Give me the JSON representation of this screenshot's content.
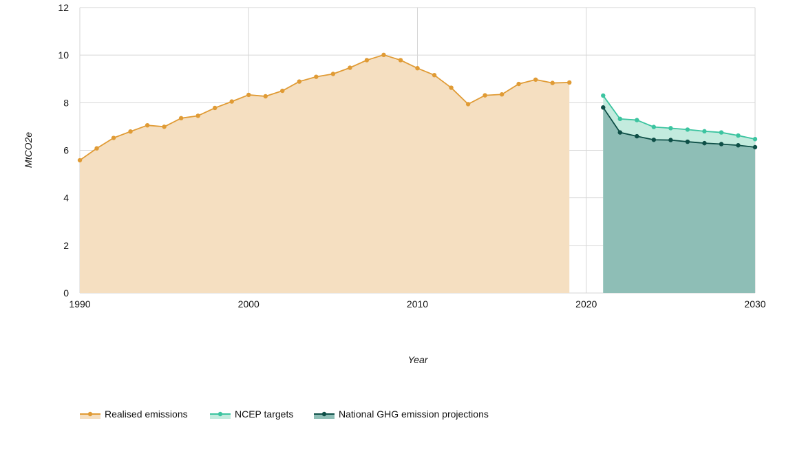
{
  "chart_data": {
    "type": "area",
    "xlabel": "Year",
    "ylabel": "MtCO2e",
    "xlim": [
      1990,
      2030
    ],
    "ylim": [
      0,
      12
    ],
    "x_ticks": [
      1990,
      2000,
      2010,
      2020,
      2030
    ],
    "y_ticks": [
      0,
      2,
      4,
      6,
      8,
      10,
      12
    ],
    "grid": true,
    "legend_position": "bottom-left",
    "series": [
      {
        "name": "Realised emissions",
        "line_color": "#E09B35",
        "fill_color": "#F5DFC1",
        "x": [
          1990,
          1991,
          1992,
          1993,
          1994,
          1995,
          1996,
          1997,
          1998,
          1999,
          2000,
          2001,
          2002,
          2003,
          2004,
          2005,
          2006,
          2007,
          2008,
          2009,
          2010,
          2011,
          2012,
          2013,
          2014,
          2015,
          2016,
          2017,
          2018,
          2019
        ],
        "values": [
          5.58,
          6.08,
          6.52,
          6.79,
          7.05,
          6.99,
          7.35,
          7.45,
          7.78,
          8.05,
          8.33,
          8.27,
          8.5,
          8.89,
          9.09,
          9.21,
          9.47,
          9.79,
          10.01,
          9.79,
          9.45,
          9.16,
          8.63,
          7.94,
          8.31,
          8.35,
          8.79,
          8.97,
          8.83,
          8.85
        ]
      },
      {
        "name": "NCEP targets",
        "line_color": "#3CC4A0",
        "fill_color": "#C3EBDE",
        "x": [
          2021,
          2022,
          2023,
          2024,
          2025,
          2026,
          2027,
          2028,
          2029,
          2030
        ],
        "values": [
          8.3,
          7.32,
          7.27,
          6.98,
          6.93,
          6.87,
          6.8,
          6.75,
          6.62,
          6.47
        ]
      },
      {
        "name": "National GHG emission projections",
        "line_color": "#0E4F47",
        "fill_color": "#8EBEB6",
        "x": [
          2021,
          2022,
          2023,
          2024,
          2025,
          2026,
          2027,
          2028,
          2029,
          2030
        ],
        "values": [
          7.8,
          6.75,
          6.59,
          6.44,
          6.43,
          6.36,
          6.3,
          6.26,
          6.21,
          6.13
        ]
      }
    ]
  }
}
